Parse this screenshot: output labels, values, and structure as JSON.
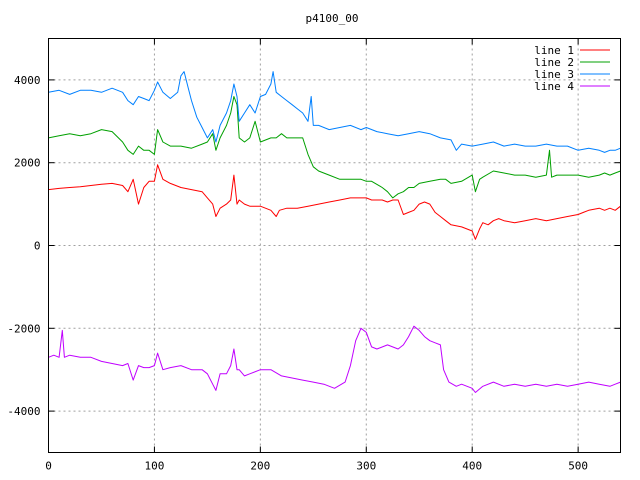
{
  "chart_data": {
    "type": "line",
    "title": "p4100_00",
    "xlabel": "",
    "ylabel": "",
    "xlim": [
      0,
      540
    ],
    "ylim": [
      -5000,
      5000
    ],
    "xticks": [
      0,
      100,
      200,
      300,
      400,
      500
    ],
    "yticks": [
      -4000,
      -2000,
      0,
      2000,
      4000
    ],
    "xtick_labels": [
      "0",
      "100",
      "200",
      "300",
      "400",
      "500"
    ],
    "ytick_labels": [
      "-4000",
      "-2000",
      "0",
      "2000",
      "4000"
    ],
    "grid": true,
    "legend_position": "top-right",
    "series": [
      {
        "name": "line 1",
        "color": "#ff0000",
        "x": [
          0,
          10,
          20,
          30,
          40,
          50,
          60,
          70,
          75,
          80,
          85,
          90,
          95,
          100,
          103,
          108,
          115,
          125,
          135,
          145,
          150,
          155,
          158,
          162,
          168,
          172,
          175,
          178,
          180,
          185,
          190,
          200,
          210,
          215,
          218,
          225,
          235,
          245,
          255,
          265,
          275,
          285,
          295,
          300,
          305,
          315,
          320,
          325,
          330,
          335,
          340,
          345,
          350,
          355,
          360,
          365,
          370,
          375,
          380,
          390,
          400,
          403,
          407,
          410,
          415,
          420,
          425,
          430,
          440,
          450,
          460,
          470,
          480,
          490,
          500,
          505,
          510,
          520,
          525,
          530,
          535,
          540
        ],
        "y": [
          1350,
          1380,
          1400,
          1420,
          1450,
          1480,
          1500,
          1450,
          1300,
          1600,
          1000,
          1400,
          1550,
          1550,
          1950,
          1600,
          1500,
          1400,
          1350,
          1300,
          1150,
          1000,
          700,
          900,
          1000,
          1100,
          1700,
          1000,
          1100,
          1000,
          950,
          950,
          850,
          700,
          850,
          900,
          900,
          950,
          1000,
          1050,
          1100,
          1150,
          1150,
          1150,
          1100,
          1100,
          1050,
          1100,
          1100,
          750,
          800,
          850,
          1000,
          1050,
          1000,
          800,
          700,
          600,
          500,
          450,
          350,
          150,
          400,
          550,
          500,
          600,
          650,
          600,
          550,
          600,
          650,
          600,
          650,
          700,
          750,
          800,
          850,
          900,
          850,
          900,
          850,
          950
        ]
      },
      {
        "name": "line 2",
        "color": "#00a000",
        "x": [
          0,
          10,
          20,
          30,
          40,
          50,
          60,
          70,
          75,
          80,
          85,
          90,
          95,
          100,
          103,
          108,
          115,
          125,
          135,
          145,
          150,
          155,
          158,
          162,
          168,
          172,
          175,
          178,
          180,
          185,
          190,
          195,
          200,
          210,
          215,
          220,
          225,
          230,
          235,
          240,
          245,
          250,
          255,
          265,
          275,
          285,
          295,
          300,
          305,
          315,
          320,
          325,
          330,
          335,
          340,
          345,
          350,
          360,
          370,
          375,
          380,
          390,
          400,
          403,
          407,
          410,
          420,
          430,
          440,
          450,
          460,
          470,
          473,
          475,
          480,
          490,
          500,
          510,
          520,
          525,
          530,
          535,
          540
        ],
        "y": [
          2600,
          2650,
          2700,
          2650,
          2700,
          2800,
          2750,
          2500,
          2300,
          2200,
          2400,
          2300,
          2300,
          2200,
          2800,
          2500,
          2400,
          2400,
          2350,
          2450,
          2500,
          2700,
          2300,
          2600,
          2900,
          3200,
          3600,
          3400,
          2600,
          2500,
          2600,
          3000,
          2500,
          2600,
          2600,
          2700,
          2600,
          2600,
          2600,
          2600,
          2200,
          1900,
          1800,
          1700,
          1600,
          1600,
          1600,
          1550,
          1550,
          1400,
          1300,
          1150,
          1250,
          1300,
          1400,
          1400,
          1500,
          1550,
          1600,
          1600,
          1500,
          1550,
          1700,
          1300,
          1600,
          1650,
          1800,
          1750,
          1700,
          1700,
          1650,
          1700,
          2300,
          1650,
          1700,
          1700,
          1700,
          1650,
          1700,
          1750,
          1700,
          1750,
          1800
        ]
      },
      {
        "name": "line 3",
        "color": "#0080ff",
        "x": [
          0,
          10,
          20,
          30,
          40,
          50,
          60,
          70,
          75,
          80,
          85,
          90,
          95,
          100,
          103,
          108,
          115,
          122,
          125,
          128,
          132,
          135,
          140,
          145,
          150,
          155,
          158,
          162,
          168,
          172,
          175,
          178,
          180,
          185,
          190,
          195,
          200,
          205,
          210,
          212,
          215,
          220,
          225,
          230,
          235,
          240,
          245,
          248,
          250,
          255,
          265,
          275,
          285,
          295,
          300,
          310,
          320,
          330,
          340,
          350,
          360,
          370,
          380,
          385,
          390,
          400,
          410,
          420,
          430,
          440,
          450,
          460,
          470,
          480,
          490,
          500,
          510,
          520,
          525,
          530,
          535,
          540
        ],
        "y": [
          3700,
          3750,
          3650,
          3750,
          3750,
          3700,
          3800,
          3700,
          3500,
          3400,
          3600,
          3550,
          3500,
          3750,
          3950,
          3700,
          3550,
          3700,
          4100,
          4200,
          3800,
          3500,
          3100,
          2850,
          2600,
          2800,
          2500,
          2900,
          3200,
          3500,
          3900,
          3600,
          3000,
          3200,
          3400,
          3200,
          3600,
          3650,
          3900,
          4200,
          3700,
          3600,
          3500,
          3400,
          3300,
          3200,
          3000,
          3600,
          2900,
          2900,
          2800,
          2850,
          2900,
          2800,
          2850,
          2750,
          2700,
          2650,
          2700,
          2750,
          2700,
          2600,
          2550,
          2300,
          2450,
          2400,
          2450,
          2500,
          2400,
          2450,
          2400,
          2400,
          2450,
          2400,
          2400,
          2300,
          2350,
          2300,
          2250,
          2300,
          2300,
          2350
        ]
      },
      {
        "name": "line 4",
        "color": "#c000ff",
        "x": [
          0,
          5,
          10,
          13,
          15,
          20,
          30,
          40,
          50,
          60,
          70,
          75,
          80,
          85,
          90,
          95,
          100,
          103,
          108,
          115,
          125,
          135,
          145,
          150,
          155,
          158,
          162,
          168,
          172,
          175,
          178,
          180,
          185,
          190,
          200,
          210,
          220,
          230,
          240,
          250,
          260,
          270,
          280,
          285,
          290,
          295,
          300,
          305,
          310,
          320,
          330,
          335,
          340,
          345,
          350,
          355,
          360,
          365,
          370,
          373,
          378,
          385,
          390,
          400,
          403,
          410,
          420,
          430,
          440,
          450,
          460,
          470,
          480,
          490,
          500,
          510,
          520,
          530,
          535,
          540
        ],
        "y": [
          -2700,
          -2650,
          -2700,
          -2050,
          -2700,
          -2650,
          -2700,
          -2700,
          -2800,
          -2850,
          -2900,
          -2850,
          -3250,
          -2900,
          -2950,
          -2950,
          -2900,
          -2600,
          -3000,
          -2950,
          -2900,
          -3000,
          -3000,
          -3100,
          -3350,
          -3500,
          -3100,
          -3100,
          -2900,
          -2500,
          -3000,
          -3000,
          -3150,
          -3100,
          -3000,
          -3000,
          -3150,
          -3200,
          -3250,
          -3300,
          -3350,
          -3450,
          -3300,
          -2900,
          -2300,
          -2000,
          -2100,
          -2450,
          -2500,
          -2400,
          -2500,
          -2400,
          -2200,
          -1950,
          -2050,
          -2200,
          -2300,
          -2350,
          -2400,
          -3000,
          -3300,
          -3400,
          -3350,
          -3450,
          -3550,
          -3400,
          -3300,
          -3400,
          -3350,
          -3400,
          -3350,
          -3400,
          -3350,
          -3400,
          -3350,
          -3300,
          -3350,
          -3400,
          -3350,
          -3300
        ]
      }
    ]
  }
}
